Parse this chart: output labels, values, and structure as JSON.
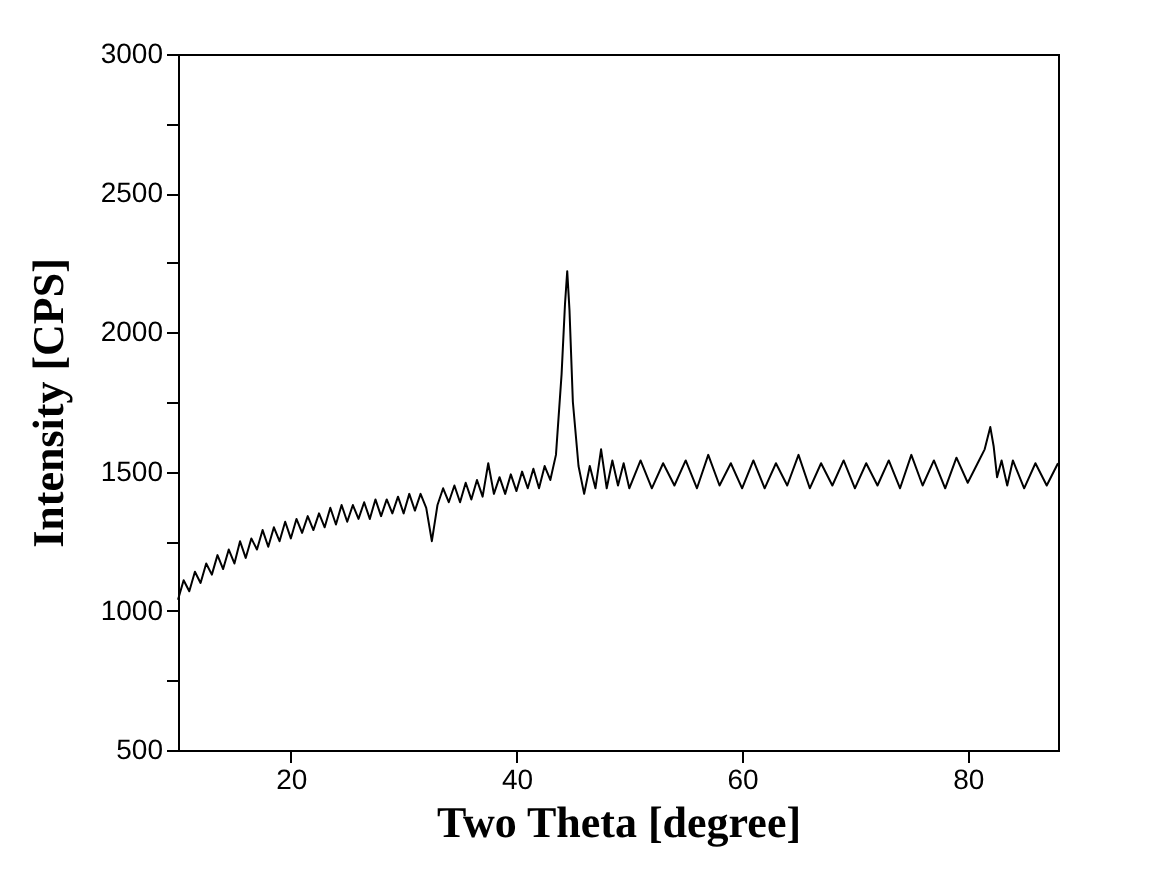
{
  "chart_data": {
    "type": "line",
    "xlabel": "Two Theta [degree]",
    "ylabel": "Intensity [CPS]",
    "xlim": [
      10,
      88
    ],
    "ylim": [
      500,
      3000
    ],
    "xticks": [
      20,
      40,
      60,
      80
    ],
    "yticks": [
      500,
      {
        "value": 750,
        "label": null
      },
      1000,
      {
        "value": 1250,
        "label": null
      },
      1500,
      {
        "value": 1750,
        "label": null
      },
      2000,
      {
        "value": 2250,
        "label": null
      },
      2500,
      {
        "value": 2750,
        "label": null
      },
      3000
    ],
    "grid": false,
    "legend": false,
    "line_style": "solid",
    "marker": "none",
    "x": [
      10,
      10.5,
      11,
      11.5,
      12,
      12.5,
      13,
      13.5,
      14,
      14.5,
      15,
      15.5,
      16,
      16.5,
      17,
      17.5,
      18,
      18.5,
      19,
      19.5,
      20,
      20.5,
      21,
      21.5,
      22,
      22.5,
      23,
      23.5,
      24,
      24.5,
      25,
      25.5,
      26,
      26.5,
      27,
      27.5,
      28,
      28.5,
      29,
      29.5,
      30,
      30.5,
      31,
      31.5,
      32,
      32.5,
      33,
      33.5,
      34,
      34.5,
      35,
      35.5,
      36,
      36.5,
      37,
      37.5,
      38,
      38.5,
      39,
      39.5,
      40,
      40.5,
      41,
      41.5,
      42,
      42.5,
      43,
      43.5,
      44,
      44.3,
      44.5,
      44.7,
      45,
      45.5,
      46,
      46.5,
      47,
      47.5,
      48,
      48.5,
      49,
      49.5,
      50,
      51,
      52,
      53,
      54,
      55,
      56,
      57,
      58,
      59,
      60,
      61,
      62,
      63,
      64,
      65,
      66,
      67,
      68,
      69,
      70,
      71,
      72,
      73,
      74,
      75,
      76,
      77,
      78,
      79,
      80,
      81,
      81.5,
      82,
      82.3,
      82.6,
      83,
      83.5,
      84,
      85,
      86,
      87,
      88
    ],
    "series": [
      {
        "color": "#000000",
        "values": [
          1040,
          1110,
          1070,
          1140,
          1100,
          1170,
          1130,
          1200,
          1150,
          1220,
          1170,
          1250,
          1190,
          1260,
          1220,
          1290,
          1230,
          1300,
          1250,
          1320,
          1260,
          1330,
          1280,
          1340,
          1290,
          1350,
          1300,
          1370,
          1310,
          1380,
          1320,
          1380,
          1330,
          1390,
          1330,
          1400,
          1340,
          1400,
          1350,
          1410,
          1350,
          1420,
          1360,
          1420,
          1370,
          1250,
          1380,
          1440,
          1390,
          1450,
          1390,
          1460,
          1400,
          1470,
          1410,
          1530,
          1420,
          1480,
          1420,
          1490,
          1430,
          1500,
          1440,
          1510,
          1440,
          1520,
          1470,
          1560,
          1850,
          2100,
          2220,
          2080,
          1750,
          1520,
          1420,
          1520,
          1440,
          1580,
          1440,
          1540,
          1450,
          1530,
          1440,
          1540,
          1440,
          1530,
          1450,
          1540,
          1440,
          1560,
          1450,
          1530,
          1440,
          1540,
          1440,
          1530,
          1450,
          1560,
          1440,
          1530,
          1450,
          1540,
          1440,
          1530,
          1450,
          1540,
          1440,
          1560,
          1450,
          1540,
          1440,
          1550,
          1460,
          1540,
          1580,
          1660,
          1590,
          1480,
          1540,
          1450,
          1540,
          1440,
          1530,
          1450,
          1530
        ]
      }
    ]
  }
}
